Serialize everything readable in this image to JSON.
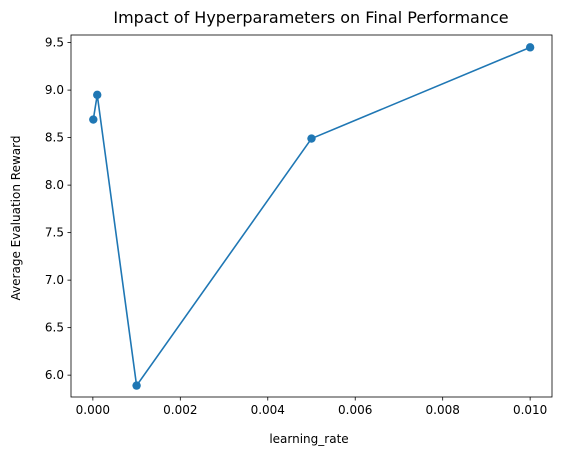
{
  "chart_data": {
    "type": "line",
    "title": "Impact of Hyperparameters on Final Performance",
    "xlabel": "learning_rate",
    "ylabel": "Average Evaluation Reward",
    "xlim": [
      -0.0005,
      0.0105
    ],
    "ylim": [
      5.77,
      9.58
    ],
    "x_ticks": [
      0.0,
      0.002,
      0.004,
      0.006,
      0.008,
      0.01
    ],
    "x_tick_labels": [
      "0.000",
      "0.002",
      "0.004",
      "0.006",
      "0.008",
      "0.010"
    ],
    "y_ticks": [
      6.0,
      6.5,
      7.0,
      7.5,
      8.0,
      8.5,
      9.0,
      9.5
    ],
    "y_tick_labels": [
      "6.0",
      "6.5",
      "7.0",
      "7.5",
      "8.0",
      "8.5",
      "9.0",
      "9.5"
    ],
    "grid": false,
    "series": [
      {
        "name": "Average Evaluation Reward",
        "color": "#1f77b4",
        "marker": "circle",
        "x": [
          1e-05,
          0.0001,
          0.001,
          0.005,
          0.01
        ],
        "y": [
          8.69,
          8.95,
          5.89,
          8.49,
          9.45
        ]
      }
    ]
  }
}
